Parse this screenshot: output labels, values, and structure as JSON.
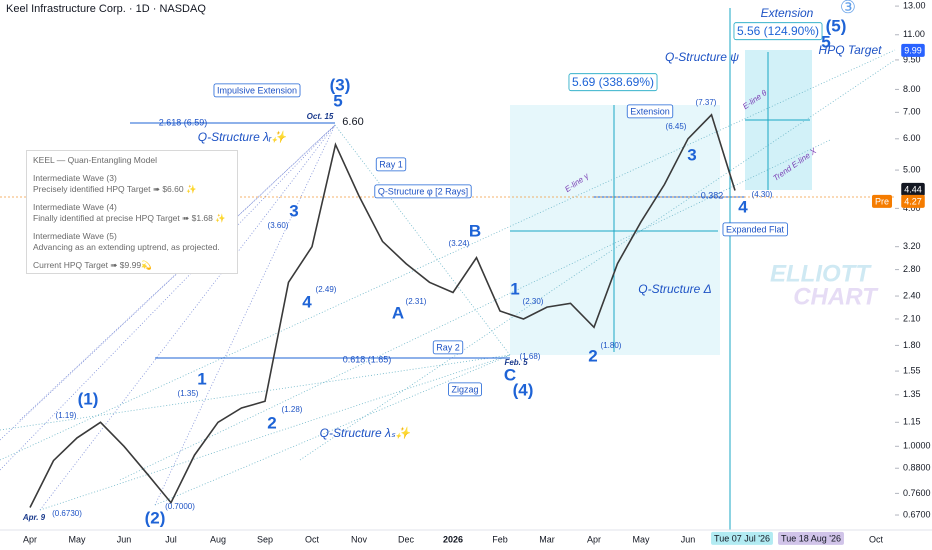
{
  "header": {
    "title": "Keel Infrastructure Corp. · 1D · NASDAQ"
  },
  "info_box": [
    "KEEL — Quan-Entangling Model",
    "Intermediate Wave (3)",
    "Precisely identified HPQ Target ➠ $6.60 ✨",
    "Intermediate Wave (4)",
    "Finally identified at precise HPQ Target ➠ $1.68 ✨",
    "Intermediate Wave (5)",
    "Advancing as an extending uptrend, as projected.",
    "Current HPQ Target ➠ $9.99💫"
  ],
  "chart_data": {
    "type": "line",
    "log_scale": true,
    "grid": false,
    "color": "#3a3a3a",
    "categories": [
      "Apr",
      null,
      "May",
      null,
      "Jun",
      null,
      "Jul",
      null,
      "Aug",
      null,
      "Sep",
      null,
      "Oct",
      null,
      "Nov",
      null,
      "Dec",
      null,
      "2026",
      null,
      "Feb",
      null,
      "Mar",
      null,
      "Apr",
      null,
      "May",
      null,
      "Jun",
      null,
      null,
      null,
      null,
      null,
      null,
      null,
      "Oct"
    ],
    "values": [
      0.7,
      0.92,
      1.05,
      1.15,
      1.0,
      0.85,
      0.72,
      0.95,
      1.15,
      1.25,
      1.3,
      2.6,
      3.2,
      5.8,
      4.3,
      3.3,
      2.9,
      2.6,
      2.45,
      3.0,
      2.2,
      2.1,
      2.25,
      2.3,
      2.0,
      2.9,
      3.7,
      4.6,
      6.0,
      6.9,
      4.44,
      null,
      null,
      null,
      null,
      null,
      null
    ],
    "ylim": [
      0.614,
      13.47
    ],
    "yticks": [
      {
        "value": 13,
        "label": "13.00"
      },
      {
        "value": 11,
        "label": "11.00"
      },
      {
        "value": 9.5,
        "label": "9.50"
      },
      {
        "value": 8,
        "label": "8.00"
      },
      {
        "value": 7,
        "label": "7.00"
      },
      {
        "value": 6,
        "label": "6.00"
      },
      {
        "value": 5,
        "label": "5.00"
      },
      {
        "value": 4,
        "label": "4.00"
      },
      {
        "value": 3.2,
        "label": "3.20"
      },
      {
        "value": 2.8,
        "label": "2.80"
      },
      {
        "value": 2.4,
        "label": "2.40"
      },
      {
        "value": 2.1,
        "label": "2.10"
      },
      {
        "value": 1.8,
        "label": "1.80"
      },
      {
        "value": 1.55,
        "label": "1.55"
      },
      {
        "value": 1.35,
        "label": "1.35"
      },
      {
        "value": 1.15,
        "label": "1.15"
      },
      {
        "value": 1,
        "label": "1.0000"
      },
      {
        "value": 0.88,
        "label": "0.8800"
      },
      {
        "value": 0.76,
        "label": "0.7600"
      },
      {
        "value": 0.67,
        "label": "0.6700"
      }
    ],
    "annotations": [
      "(1)",
      "(2)",
      "(3)",
      "(4)",
      "(5)",
      "1",
      "2",
      "3",
      "4",
      "5",
      "A",
      "B",
      "C",
      "1",
      "2",
      "3",
      "4",
      "5",
      "(1.19)",
      "(0.6730)",
      "(0.7000)",
      "(1.35)",
      "(1.28)",
      "(3.60)",
      "(2.49)",
      "6.60",
      "(2.31)",
      "(3.24)",
      "(1.68)",
      "(2.30)",
      "(1.80)",
      "(6.45)",
      "(7.37)",
      "(4.30)",
      "Apr. 9",
      "Oct. 15",
      "Feb. 5",
      "Impulsive Extension",
      "Q-Structure λᵣ✨",
      "2.618 (6.59)",
      "0.618 (1.65)",
      "Ray 1",
      "Q-Structure φ [2 Rays]",
      "Ray 2",
      "Zigzag",
      "Q-Structure λₛ✨",
      "5.69 (338.69%)",
      "Extension",
      "Q-Structure ψ",
      "Extension",
      "5.56 (124.90%)",
      "HPQ Target",
      "0.382",
      "Expanded Flat",
      "Q-Structure Δ",
      "E-line γ",
      "E-line θ",
      "Trend E-line X",
      "ELLIOTT",
      "CHART",
      "③",
      "9.99",
      "4.44",
      "Pre",
      "4.27",
      "Tue 07 Jul '26",
      "Tue 18 Aug '26"
    ]
  }
}
